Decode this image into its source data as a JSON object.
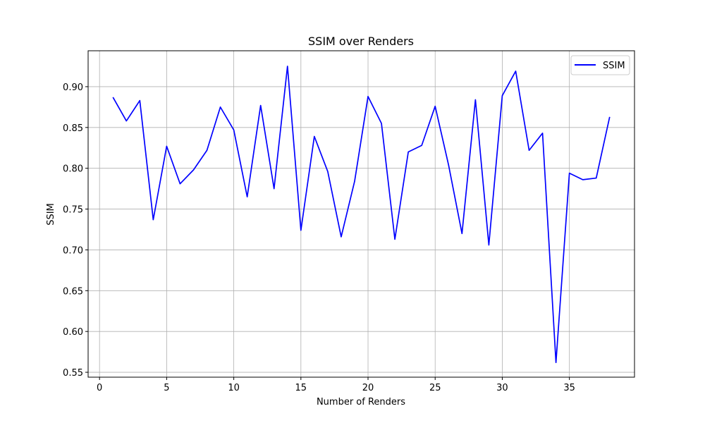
{
  "chart_data": {
    "type": "line",
    "title": "SSIM over Renders",
    "xlabel": "Number of Renders",
    "ylabel": "SSIM",
    "xlim": [
      -0.85,
      39.85
    ],
    "ylim": [
      0.544,
      0.944
    ],
    "xticks": [
      0,
      5,
      10,
      15,
      20,
      25,
      30,
      35
    ],
    "yticks": [
      0.55,
      0.6,
      0.65,
      0.7,
      0.75,
      0.8,
      0.85,
      0.9
    ],
    "grid": true,
    "legend_position": "top-right",
    "series": [
      {
        "name": "SSIM",
        "color": "#0000ff",
        "x": [
          1,
          2,
          3,
          4,
          5,
          6,
          7,
          8,
          9,
          10,
          11,
          12,
          13,
          14,
          15,
          16,
          17,
          18,
          19,
          20,
          21,
          22,
          23,
          24,
          25,
          26,
          27,
          28,
          29,
          30,
          31,
          32,
          33,
          34,
          35,
          36,
          37,
          38
        ],
        "y": [
          0.887,
          0.858,
          0.883,
          0.737,
          0.827,
          0.781,
          0.798,
          0.822,
          0.875,
          0.847,
          0.765,
          0.877,
          0.775,
          0.925,
          0.724,
          0.839,
          0.796,
          0.716,
          0.784,
          0.888,
          0.855,
          0.713,
          0.82,
          0.828,
          0.876,
          0.804,
          0.72,
          0.884,
          0.706,
          0.889,
          0.919,
          0.822,
          0.843,
          0.562,
          0.794,
          0.786,
          0.788,
          0.863
        ]
      }
    ]
  }
}
